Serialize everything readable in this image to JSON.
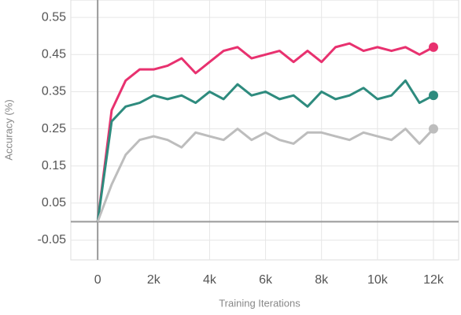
{
  "chart_data": {
    "type": "line",
    "x_label": "Training Iterations",
    "y_label": "Accuracy (%)",
    "x": [
      0,
      500,
      1000,
      1500,
      2000,
      2500,
      3000,
      3500,
      4000,
      4500,
      5000,
      5500,
      6000,
      6500,
      7000,
      7500,
      8000,
      8500,
      9000,
      9500,
      10000,
      10500,
      11000,
      11500,
      12000
    ],
    "series": [
      {
        "color": "#e8316f",
        "values": [
          0.0,
          0.3,
          0.38,
          0.41,
          0.41,
          0.42,
          0.44,
          0.4,
          0.43,
          0.46,
          0.47,
          0.44,
          0.45,
          0.46,
          0.43,
          0.46,
          0.43,
          0.47,
          0.48,
          0.46,
          0.47,
          0.46,
          0.47,
          0.45,
          0.47
        ]
      },
      {
        "color": "#2e8b7e",
        "values": [
          0.0,
          0.27,
          0.31,
          0.32,
          0.34,
          0.33,
          0.34,
          0.32,
          0.35,
          0.33,
          0.37,
          0.34,
          0.35,
          0.33,
          0.34,
          0.31,
          0.35,
          0.33,
          0.34,
          0.36,
          0.33,
          0.34,
          0.38,
          0.32,
          0.34
        ]
      },
      {
        "color": "#bdbdbd",
        "values": [
          0.0,
          0.1,
          0.18,
          0.22,
          0.23,
          0.22,
          0.2,
          0.24,
          0.23,
          0.22,
          0.25,
          0.22,
          0.24,
          0.22,
          0.21,
          0.24,
          0.24,
          0.23,
          0.22,
          0.24,
          0.23,
          0.22,
          0.25,
          0.21,
          0.25
        ]
      }
    ],
    "xlim": [
      -960,
      12900
    ],
    "ylim": [
      -0.103,
      0.597
    ],
    "xticks": [
      0,
      {
        "value": 2000,
        "label": "2k"
      },
      {
        "value": 4000,
        "label": "4k"
      },
      {
        "value": 6000,
        "label": "6k"
      },
      {
        "value": 8000,
        "label": "8k"
      },
      {
        "value": 10000,
        "label": "10k"
      },
      {
        "value": 12000,
        "label": "12k"
      }
    ],
    "yticks": [
      -0.05,
      0.05,
      0.15,
      0.25,
      0.35,
      0.45,
      0.55
    ],
    "grid": true
  }
}
